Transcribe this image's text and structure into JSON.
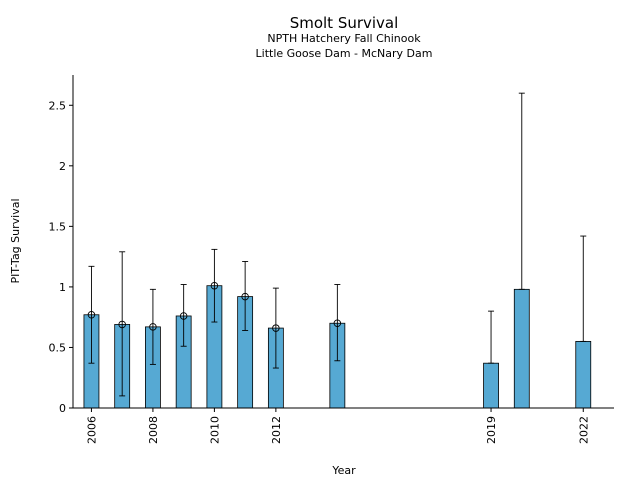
{
  "chart_data": {
    "type": "bar",
    "title": "Smolt Survival",
    "subtitle_lines": [
      "NPTH Hatchery Fall Chinook",
      "Little Goose Dam - McNary Dam"
    ],
    "xlabel": "Year",
    "ylabel": "PIT-Tag Survival",
    "xlim": [
      2005.4,
      2023.0
    ],
    "ylim": [
      0,
      2.75
    ],
    "yticks": [
      0,
      0.5,
      1,
      1.5,
      2,
      2.5
    ],
    "ytick_labels": [
      "0",
      "0.5",
      "1",
      "1.5",
      "2",
      "2.5"
    ],
    "xticks": [
      2006,
      2008,
      2010,
      2012,
      2019,
      2022
    ],
    "xtick_labels": [
      "2006",
      "2008",
      "2010",
      "2012",
      "2019",
      "2022"
    ],
    "bar_color": "#56a9d3",
    "grid": false,
    "series": [
      {
        "values": [
          {
            "x": 2006,
            "y": 0.77,
            "lower": 0.37,
            "upper": 1.17,
            "marker": true
          },
          {
            "x": 2007,
            "y": 0.69,
            "lower": 0.1,
            "upper": 1.29,
            "marker": true
          },
          {
            "x": 2008,
            "y": 0.67,
            "lower": 0.36,
            "upper": 0.98,
            "marker": true
          },
          {
            "x": 2009,
            "y": 0.76,
            "lower": 0.51,
            "upper": 1.02,
            "marker": true
          },
          {
            "x": 2010,
            "y": 1.01,
            "lower": 0.71,
            "upper": 1.31,
            "marker": true
          },
          {
            "x": 2011,
            "y": 0.92,
            "lower": 0.64,
            "upper": 1.21,
            "marker": true
          },
          {
            "x": 2012,
            "y": 0.66,
            "lower": 0.33,
            "upper": 0.99,
            "marker": true
          },
          {
            "x": 2014,
            "y": 0.7,
            "lower": 0.39,
            "upper": 1.02,
            "marker": true
          },
          {
            "x": 2019,
            "y": 0.37,
            "lower": 0.37,
            "upper": 0.8,
            "marker": false
          },
          {
            "x": 2020,
            "y": 0.98,
            "lower": 0.98,
            "upper": 2.6,
            "marker": false
          },
          {
            "x": 2022,
            "y": 0.55,
            "lower": 0.55,
            "upper": 1.42,
            "marker": false
          }
        ]
      }
    ]
  }
}
